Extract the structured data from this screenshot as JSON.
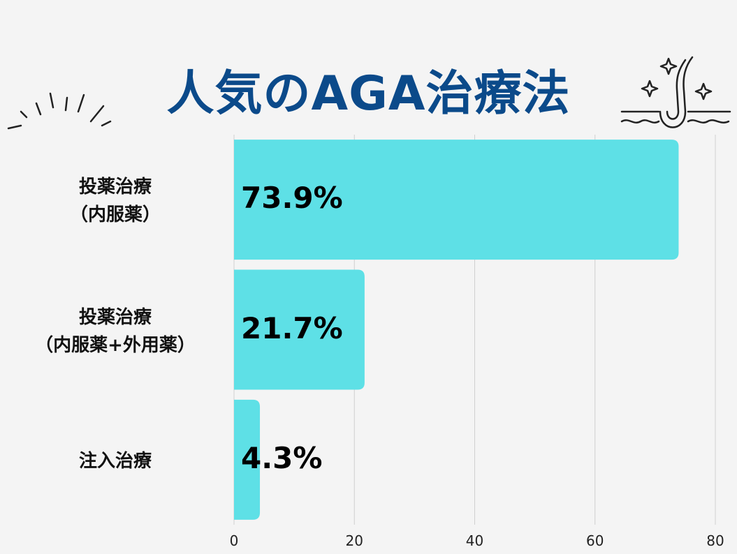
{
  "chart_data": {
    "type": "bar",
    "orientation": "horizontal",
    "title": "人気のAGA治療法",
    "categories": [
      [
        "投薬治療",
        "（内服薬）"
      ],
      [
        "投薬治療",
        "（内服薬+外用薬）"
      ],
      [
        "注入治療"
      ]
    ],
    "values": [
      73.9,
      21.7,
      4.3
    ],
    "value_labels": [
      "73.9%",
      "21.7%",
      "4.3%"
    ],
    "xlim": [
      0,
      80
    ],
    "xticks": [
      0,
      20,
      40,
      60,
      80
    ],
    "grid": true,
    "colors": {
      "bar": "#5ee0e6",
      "title": "#0b4a8a",
      "grid": "#cfcfcf"
    }
  }
}
